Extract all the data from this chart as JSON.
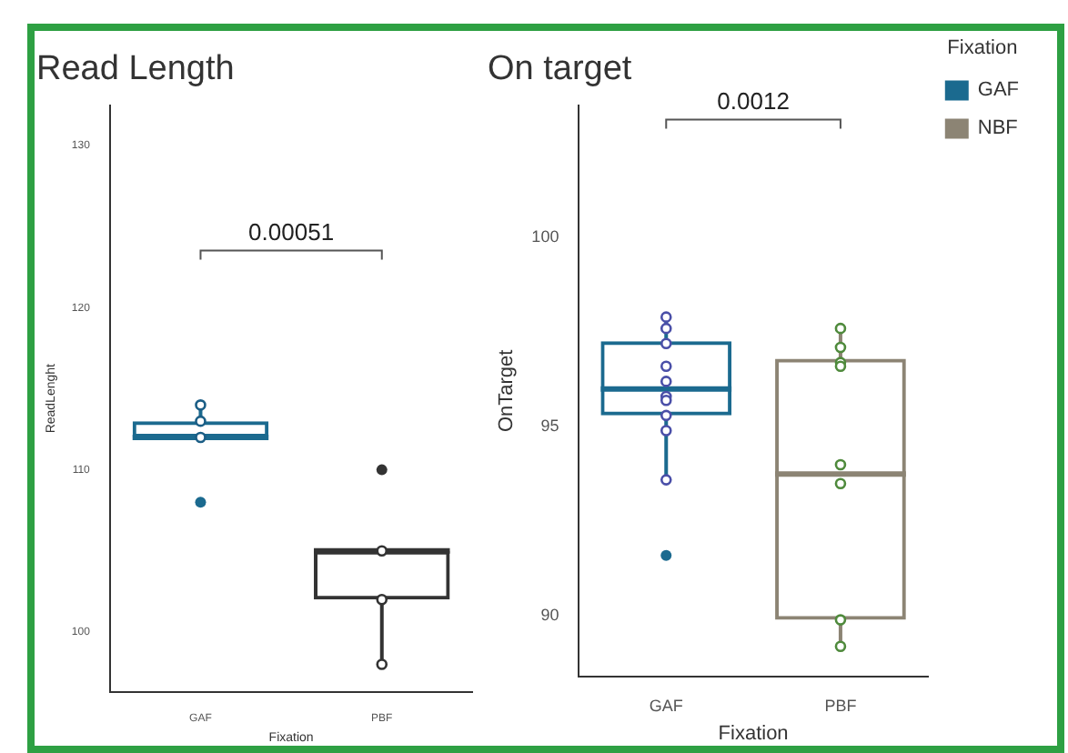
{
  "chart_data": [
    {
      "type": "box",
      "title": "Read Length",
      "xlabel": "Fixation",
      "ylabel": "ReadLenght",
      "categories": [
        "GAF",
        "PBF"
      ],
      "ylim": [
        96.3,
        132.5
      ],
      "yticks": [
        100,
        110,
        120,
        130
      ],
      "grid": false,
      "legend": false,
      "marker": "circle",
      "series": [
        {
          "type": "box",
          "color": "#1b6a8f",
          "boxes": [
            {
              "low": 112,
              "q1": 112,
              "median": 112,
              "q3": 113,
              "high": 114,
              "outliers": [
                108
              ]
            },
            null
          ]
        },
        {
          "type": "box",
          "color": "#333333",
          "boxes": [
            null,
            {
              "low": 98,
              "q1": 102,
              "median": 105,
              "q3": 105,
              "high": 105,
              "outliers": [
                110
              ]
            }
          ]
        },
        {
          "type": "scatter",
          "color": "#1b5e86",
          "x": [
            "GAF",
            "GAF",
            "GAF"
          ],
          "values": [
            114,
            113,
            112
          ]
        },
        {
          "type": "scatter",
          "color": "#333333",
          "x": [
            "PBF",
            "PBF",
            "PBF"
          ],
          "values": [
            105,
            102,
            98
          ]
        }
      ],
      "annotations": [
        "0.00051"
      ]
    },
    {
      "type": "box",
      "title": "On target",
      "xlabel": "Fixation",
      "ylabel": "OnTarget",
      "categories": [
        "GAF",
        "PBF"
      ],
      "ylim": [
        88.4,
        103.5
      ],
      "yticks": [
        90,
        95,
        100
      ],
      "grid": false,
      "legend": "top right",
      "legend_title": "Fixation",
      "marker": "circle",
      "series": [
        {
          "type": "box",
          "name": "GAF",
          "color": "#1b6a8f",
          "boxes": [
            {
              "low": 93.6,
              "q1": 95.3,
              "median": 96.0,
              "q3": 97.26,
              "high": 97.9,
              "outliers": [
                91.6
              ]
            },
            null
          ]
        },
        {
          "type": "box",
          "name": "NBF",
          "color": "#8c8474",
          "boxes": [
            null,
            {
              "low": 89.2,
              "q1": 89.9,
              "median": 93.75,
              "q3": 96.8,
              "high": 97.6
            }
          ]
        },
        {
          "type": "scatter",
          "color": "#4a4fa8",
          "x": [
            "GAF",
            "GAF",
            "GAF",
            "GAF",
            "GAF",
            "GAF",
            "GAF",
            "GAF",
            "GAF",
            "GAF"
          ],
          "values": [
            97.9,
            97.6,
            97.2,
            96.6,
            96.2,
            95.8,
            95.7,
            95.3,
            94.9,
            93.6
          ]
        },
        {
          "type": "scatter",
          "color": "#4f8a3c",
          "x": [
            "PBF",
            "PBF",
            "PBF",
            "PBF",
            "PBF",
            "PBF",
            "PBF",
            "PBF"
          ],
          "values": [
            97.6,
            97.1,
            96.7,
            96.6,
            94.0,
            93.5,
            89.9,
            89.2
          ]
        }
      ],
      "annotations": [
        "0.0012"
      ]
    }
  ]
}
